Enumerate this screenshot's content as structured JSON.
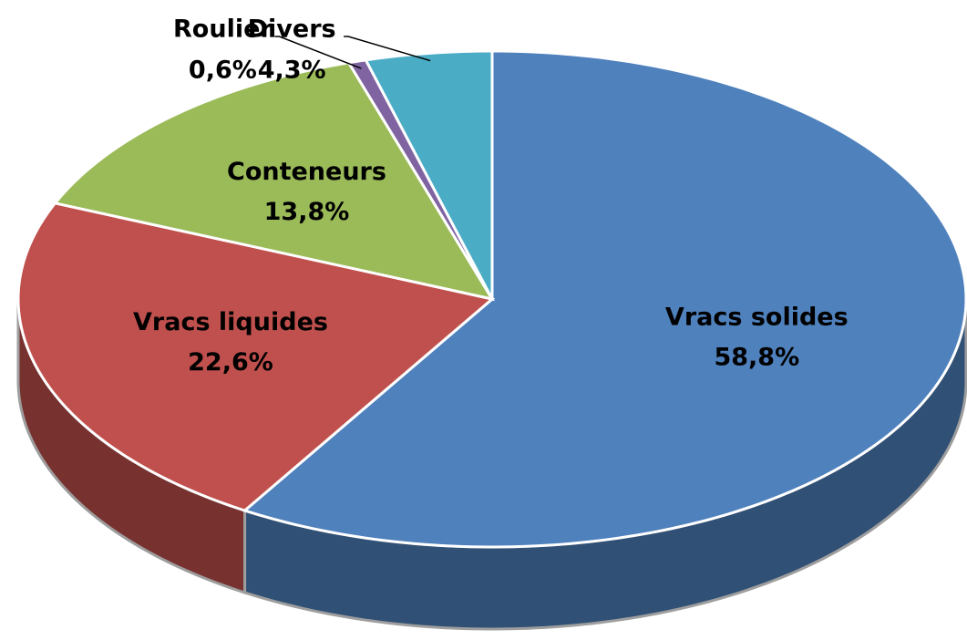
{
  "chart_data": {
    "type": "pie",
    "categories": [
      "Vracs solides",
      "Vracs liquides",
      "Conteneurs",
      "Roulier",
      "Divers"
    ],
    "values": [
      58.8,
      22.6,
      13.8,
      0.6,
      4.3
    ],
    "value_labels": [
      "58,8%",
      "22,6%",
      "13,8%",
      "0,6%",
      "4,3%"
    ],
    "colors": [
      "#4f81bd",
      "#c0504d",
      "#9bbb59",
      "#8064a2",
      "#4bacc6"
    ]
  }
}
